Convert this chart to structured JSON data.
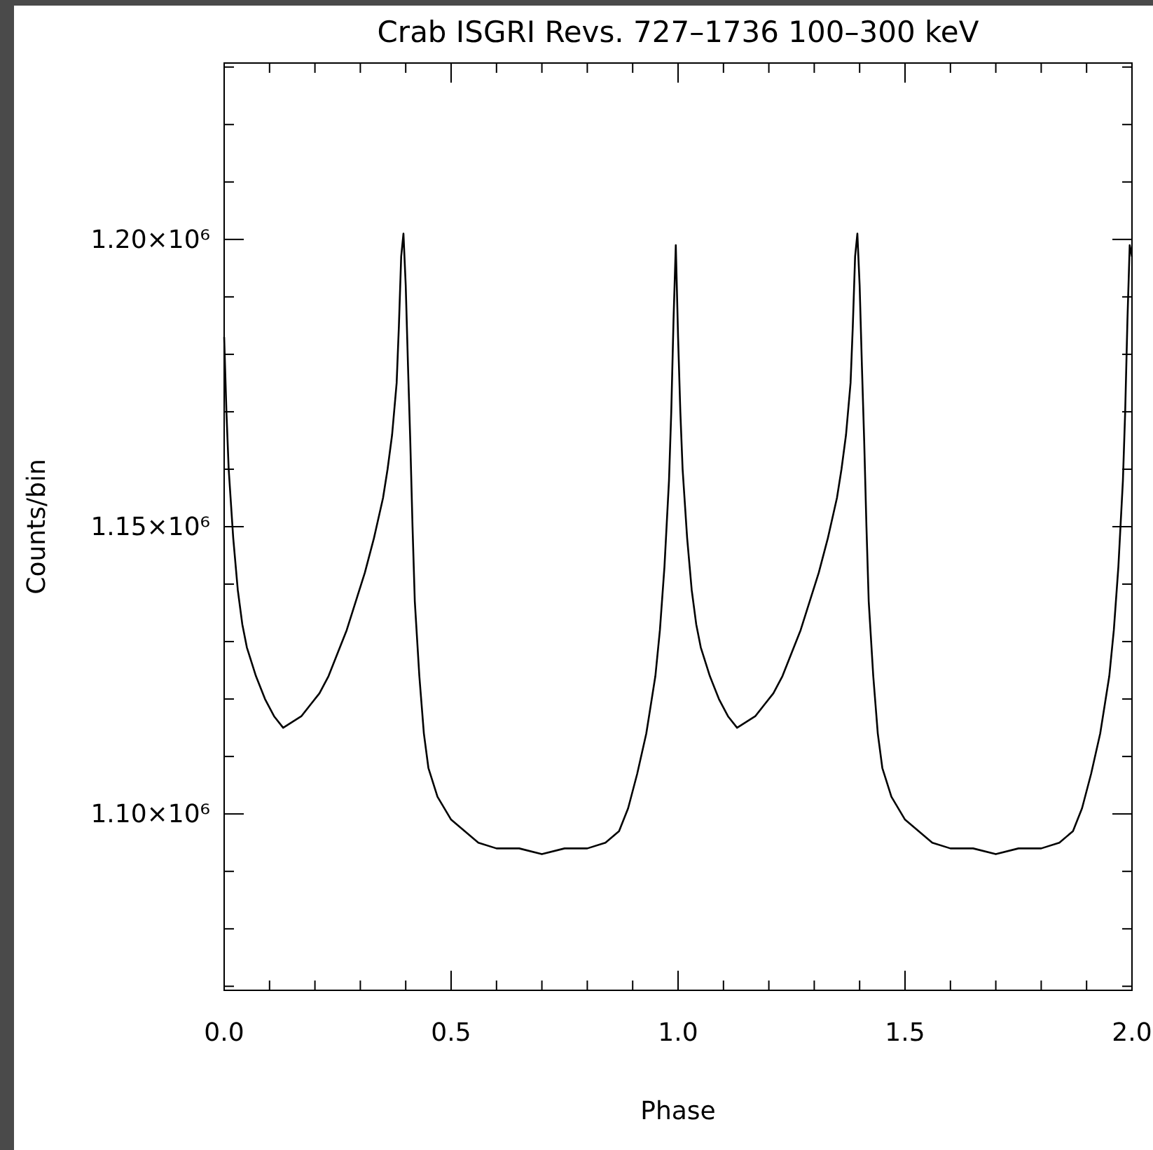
{
  "chart_data": {
    "type": "line",
    "title": "Crab ISGRI Revs. 727–1736 100–300 keV",
    "xlabel": "Phase",
    "ylabel": "Counts/bin",
    "xlim": [
      0,
      2
    ],
    "ylim": [
      1069300,
      1230700
    ],
    "xticks": [
      {
        "value": 0,
        "label": "0.0"
      },
      {
        "value": 0.1,
        "label": null
      },
      {
        "value": 0.2,
        "label": null
      },
      {
        "value": 0.3,
        "label": null
      },
      {
        "value": 0.4,
        "label": null
      },
      {
        "value": 0.5,
        "label": "0.5"
      },
      {
        "value": 0.6,
        "label": null
      },
      {
        "value": 0.7,
        "label": null
      },
      {
        "value": 0.8,
        "label": null
      },
      {
        "value": 0.9,
        "label": null
      },
      {
        "value": 1,
        "label": "1.0"
      },
      {
        "value": 1.1,
        "label": null
      },
      {
        "value": 1.2,
        "label": null
      },
      {
        "value": 1.3,
        "label": null
      },
      {
        "value": 1.4,
        "label": null
      },
      {
        "value": 1.5,
        "label": "1.5"
      },
      {
        "value": 1.6,
        "label": null
      },
      {
        "value": 1.7,
        "label": null
      },
      {
        "value": 1.8,
        "label": null
      },
      {
        "value": 1.9,
        "label": null
      },
      {
        "value": 2,
        "label": "2.0"
      }
    ],
    "yticks": [
      {
        "value": 1070000,
        "label": null
      },
      {
        "value": 1080000,
        "label": null
      },
      {
        "value": 1090000,
        "label": null
      },
      {
        "value": 1100000,
        "label": "1.10×10⁶"
      },
      {
        "value": 1110000,
        "label": null
      },
      {
        "value": 1120000,
        "label": null
      },
      {
        "value": 1130000,
        "label": null
      },
      {
        "value": 1140000,
        "label": null
      },
      {
        "value": 1150000,
        "label": "1.15×10⁶"
      },
      {
        "value": 1160000,
        "label": null
      },
      {
        "value": 1170000,
        "label": null
      },
      {
        "value": 1180000,
        "label": null
      },
      {
        "value": 1190000,
        "label": null
      },
      {
        "value": 1200000,
        "label": "1.20×10⁶"
      },
      {
        "value": 1210000,
        "label": null
      },
      {
        "value": 1220000,
        "label": null
      },
      {
        "value": 1230000,
        "label": null
      }
    ],
    "grid": false,
    "marker": "none",
    "line_style": "solid",
    "series": [
      {
        "color": "#000000",
        "x": [
          0,
          0.005,
          0.01,
          0.02,
          0.03,
          0.04,
          0.05,
          0.07,
          0.09,
          0.11,
          0.13,
          0.15,
          0.17,
          0.19,
          0.21,
          0.23,
          0.25,
          0.27,
          0.29,
          0.31,
          0.33,
          0.35,
          0.36,
          0.37,
          0.38,
          0.385,
          0.39,
          0.395,
          0.4,
          0.405,
          0.41,
          0.415,
          0.42,
          0.43,
          0.44,
          0.45,
          0.47,
          0.5,
          0.53,
          0.56,
          0.6,
          0.65,
          0.7,
          0.75,
          0.8,
          0.84,
          0.87,
          0.89,
          0.91,
          0.93,
          0.95,
          0.96,
          0.97,
          0.98,
          0.985,
          0.99,
          0.995,
          1,
          1.005,
          1.01,
          1.02,
          1.03,
          1.04,
          1.05,
          1.07,
          1.09,
          1.11,
          1.13,
          1.15,
          1.17,
          1.19,
          1.21,
          1.23,
          1.25,
          1.27,
          1.29,
          1.31,
          1.33,
          1.35,
          1.36,
          1.37,
          1.38,
          1.385,
          1.39,
          1.395,
          1.4,
          1.405,
          1.41,
          1.415,
          1.42,
          1.43,
          1.44,
          1.45,
          1.47,
          1.5,
          1.53,
          1.56,
          1.6,
          1.65,
          1.7,
          1.75,
          1.8,
          1.84,
          1.87,
          1.89,
          1.91,
          1.93,
          1.95,
          1.96,
          1.97,
          1.98,
          1.985,
          1.99,
          1.995,
          2
        ],
        "values": [
          1183000,
          1170000,
          1160000,
          1148000,
          1139000,
          1133000,
          1129000,
          1124000,
          1120000,
          1117000,
          1115000,
          1116000,
          1117000,
          1119000,
          1121000,
          1124000,
          1128000,
          1132000,
          1137000,
          1142000,
          1148000,
          1155000,
          1160000,
          1166000,
          1175000,
          1185000,
          1197000,
          1201000,
          1192000,
          1178000,
          1165000,
          1150000,
          1137000,
          1124000,
          1114000,
          1108000,
          1103000,
          1099000,
          1097000,
          1095000,
          1094000,
          1094000,
          1093000,
          1094000,
          1094000,
          1095000,
          1097000,
          1101000,
          1107000,
          1114000,
          1124000,
          1132000,
          1143000,
          1158000,
          1170000,
          1186000,
          1199000,
          1183000,
          1170000,
          1160000,
          1148000,
          1139000,
          1133000,
          1129000,
          1124000,
          1120000,
          1117000,
          1115000,
          1116000,
          1117000,
          1119000,
          1121000,
          1124000,
          1128000,
          1132000,
          1137000,
          1142000,
          1148000,
          1155000,
          1160000,
          1166000,
          1175000,
          1185000,
          1197000,
          1201000,
          1192000,
          1178000,
          1165000,
          1150000,
          1137000,
          1124000,
          1114000,
          1108000,
          1103000,
          1099000,
          1097000,
          1095000,
          1094000,
          1094000,
          1093000,
          1094000,
          1094000,
          1095000,
          1097000,
          1101000,
          1107000,
          1114000,
          1124000,
          1132000,
          1143000,
          1158000,
          1170000,
          1186000,
          1199000,
          1197000
        ]
      }
    ]
  }
}
